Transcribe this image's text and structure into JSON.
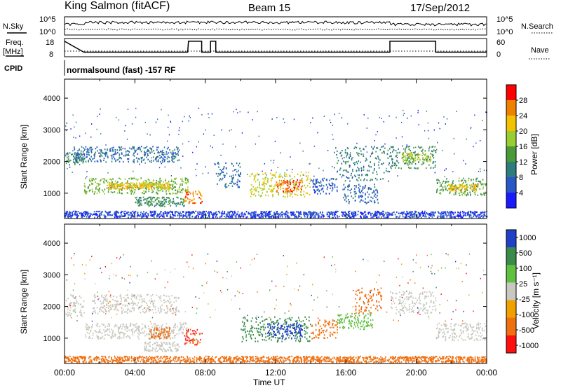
{
  "header": {
    "station": "King Salmon (fitACF)",
    "beam": "Beam 15",
    "date": "17/Sep/2012"
  },
  "labels": {
    "nsky": "N.Sky",
    "nsearch": "N.Search",
    "freq_line1": "Freq.",
    "freq_line2": "[MHz]",
    "nave": "Nave",
    "cpid": "CPID",
    "cpid_value": "normalsound (fast) -157 RF",
    "ylabel": "Slant Range [km]",
    "xlabel": "Time UT"
  },
  "noise_panel": {
    "left_ticks": [
      "10^5",
      "10^0"
    ],
    "right_ticks": [
      "10^5",
      "10^0"
    ]
  },
  "freq_panel": {
    "left_ticks": [
      18,
      8
    ],
    "right_ticks": [
      60,
      0
    ],
    "step": [
      [
        0,
        16.5
      ],
      [
        1.1,
        10.5
      ],
      [
        7.0,
        10.5
      ],
      [
        7.05,
        16.5
      ],
      [
        7.8,
        16.5
      ],
      [
        7.8,
        10.5
      ],
      [
        8.3,
        10.5
      ],
      [
        8.3,
        16.5
      ],
      [
        8.6,
        16.5
      ],
      [
        8.6,
        10.5
      ],
      [
        18.5,
        10.5
      ],
      [
        18.5,
        16.5
      ],
      [
        21.1,
        16.5
      ],
      [
        21.1,
        10.5
      ],
      [
        24,
        10.5
      ]
    ]
  },
  "chart_data": [
    {
      "type": "heatmap",
      "quantity": "Power",
      "colorbar_label": "Power [dB]",
      "colorbar_ticks": [
        4,
        8,
        12,
        16,
        20,
        24,
        28
      ],
      "x_ticks": [
        "00:00",
        "04:00",
        "08:00",
        "12:00",
        "16:00",
        "20:00",
        "00:00"
      ],
      "y_ticks": [
        1000,
        2000,
        3000,
        4000
      ],
      "xlim": [
        0,
        24
      ],
      "ylim": [
        200,
        4600
      ],
      "features": [
        {
          "t0": 0.0,
          "t1": 1.1,
          "r0": 1900,
          "r1": 2300,
          "value": 12
        },
        {
          "t0": 1.1,
          "t1": 7.0,
          "r0": 1000,
          "r1": 1500,
          "value": 16
        },
        {
          "t0": 2.5,
          "t1": 6.0,
          "r0": 1150,
          "r1": 1350,
          "value": 22
        },
        {
          "t0": 0.5,
          "t1": 6.5,
          "r0": 2000,
          "r1": 2500,
          "value": 8
        },
        {
          "t0": 4.0,
          "t1": 6.8,
          "r0": 600,
          "r1": 900,
          "value": 12
        },
        {
          "t0": 6.8,
          "t1": 7.8,
          "r0": 700,
          "r1": 1100,
          "value": 26
        },
        {
          "t0": 8.5,
          "t1": 10.0,
          "r0": 1200,
          "r1": 2000,
          "value": 8
        },
        {
          "t0": 10.5,
          "t1": 14.0,
          "r0": 900,
          "r1": 1700,
          "value": 20
        },
        {
          "t0": 12.0,
          "t1": 13.5,
          "r0": 1050,
          "r1": 1450,
          "value": 27
        },
        {
          "t0": 14.0,
          "t1": 15.5,
          "r0": 1000,
          "r1": 1500,
          "value": 6
        },
        {
          "t0": 15.3,
          "t1": 18.5,
          "r0": 1400,
          "r1": 2500,
          "value": 10
        },
        {
          "t0": 15.8,
          "t1": 17.8,
          "r0": 700,
          "r1": 1300,
          "value": 7
        },
        {
          "t0": 18.5,
          "t1": 21.1,
          "r0": 1800,
          "r1": 2500,
          "value": 12
        },
        {
          "t0": 19.2,
          "t1": 20.8,
          "r0": 2000,
          "r1": 2300,
          "value": 18
        },
        {
          "t0": 21.1,
          "t1": 24.0,
          "r0": 950,
          "r1": 1500,
          "value": 14
        },
        {
          "t0": 21.8,
          "t1": 23.5,
          "r0": 1100,
          "r1": 1300,
          "value": 22
        },
        {
          "t0": 0.0,
          "t1": 24.0,
          "r0": 250,
          "r1": 450,
          "value": 5
        }
      ]
    },
    {
      "type": "heatmap",
      "quantity": "Velocity",
      "colorbar_label": "Velocity [m s⁻¹]",
      "colorbar_ticks": [
        1000,
        500,
        100,
        25,
        -25,
        -100,
        -500,
        -1000
      ],
      "x_ticks": [
        "00:00",
        "04:00",
        "08:00",
        "12:00",
        "16:00",
        "20:00",
        "00:00"
      ],
      "y_ticks": [
        1000,
        2000,
        3000,
        4000
      ],
      "xlim": [
        0,
        24
      ],
      "ylim": [
        200,
        4600
      ],
      "features": [
        {
          "t0": 0.0,
          "t1": 1.1,
          "r0": 1700,
          "r1": 2400,
          "value": 0
        },
        {
          "t0": 1.1,
          "t1": 7.0,
          "r0": 1000,
          "r1": 1500,
          "value": 0
        },
        {
          "t0": 1.5,
          "t1": 6.5,
          "r0": 1800,
          "r1": 2400,
          "value": 0
        },
        {
          "t0": 4.5,
          "t1": 6.5,
          "r0": 600,
          "r1": 900,
          "value": 0
        },
        {
          "t0": 4.8,
          "t1": 6.0,
          "r0": 1000,
          "r1": 1350,
          "value": -300
        },
        {
          "t0": 6.8,
          "t1": 7.8,
          "r0": 800,
          "r1": 1300,
          "value": -500
        },
        {
          "t0": 10.0,
          "t1": 14.0,
          "r0": 900,
          "r1": 1700,
          "value": 150
        },
        {
          "t0": 11.5,
          "t1": 13.5,
          "r0": 1000,
          "r1": 1500,
          "value": 700
        },
        {
          "t0": 14.0,
          "t1": 15.5,
          "r0": 1000,
          "r1": 1600,
          "value": -200
        },
        {
          "t0": 15.5,
          "t1": 17.5,
          "r0": 1300,
          "r1": 1800,
          "value": 60
        },
        {
          "t0": 16.5,
          "t1": 18.0,
          "r0": 1800,
          "r1": 2600,
          "value": -300
        },
        {
          "t0": 18.5,
          "t1": 21.1,
          "r0": 1800,
          "r1": 2500,
          "value": 0
        },
        {
          "t0": 21.1,
          "t1": 24.0,
          "r0": 950,
          "r1": 1500,
          "value": 0
        },
        {
          "t0": 0.0,
          "t1": 24.0,
          "r0": 250,
          "r1": 450,
          "value": -150
        }
      ]
    }
  ],
  "colors": {
    "power_scale": [
      "#1a1aff",
      "#2858c8",
      "#2e7d7d",
      "#4a9a3a",
      "#9acd32",
      "#f2c200",
      "#f08000",
      "#ff0000"
    ],
    "velocity_scale": [
      "#2040c8",
      "#3a8a4a",
      "#60c040",
      "#c8c8c0",
      "#f0a000",
      "#f07010",
      "#ff1010"
    ]
  }
}
